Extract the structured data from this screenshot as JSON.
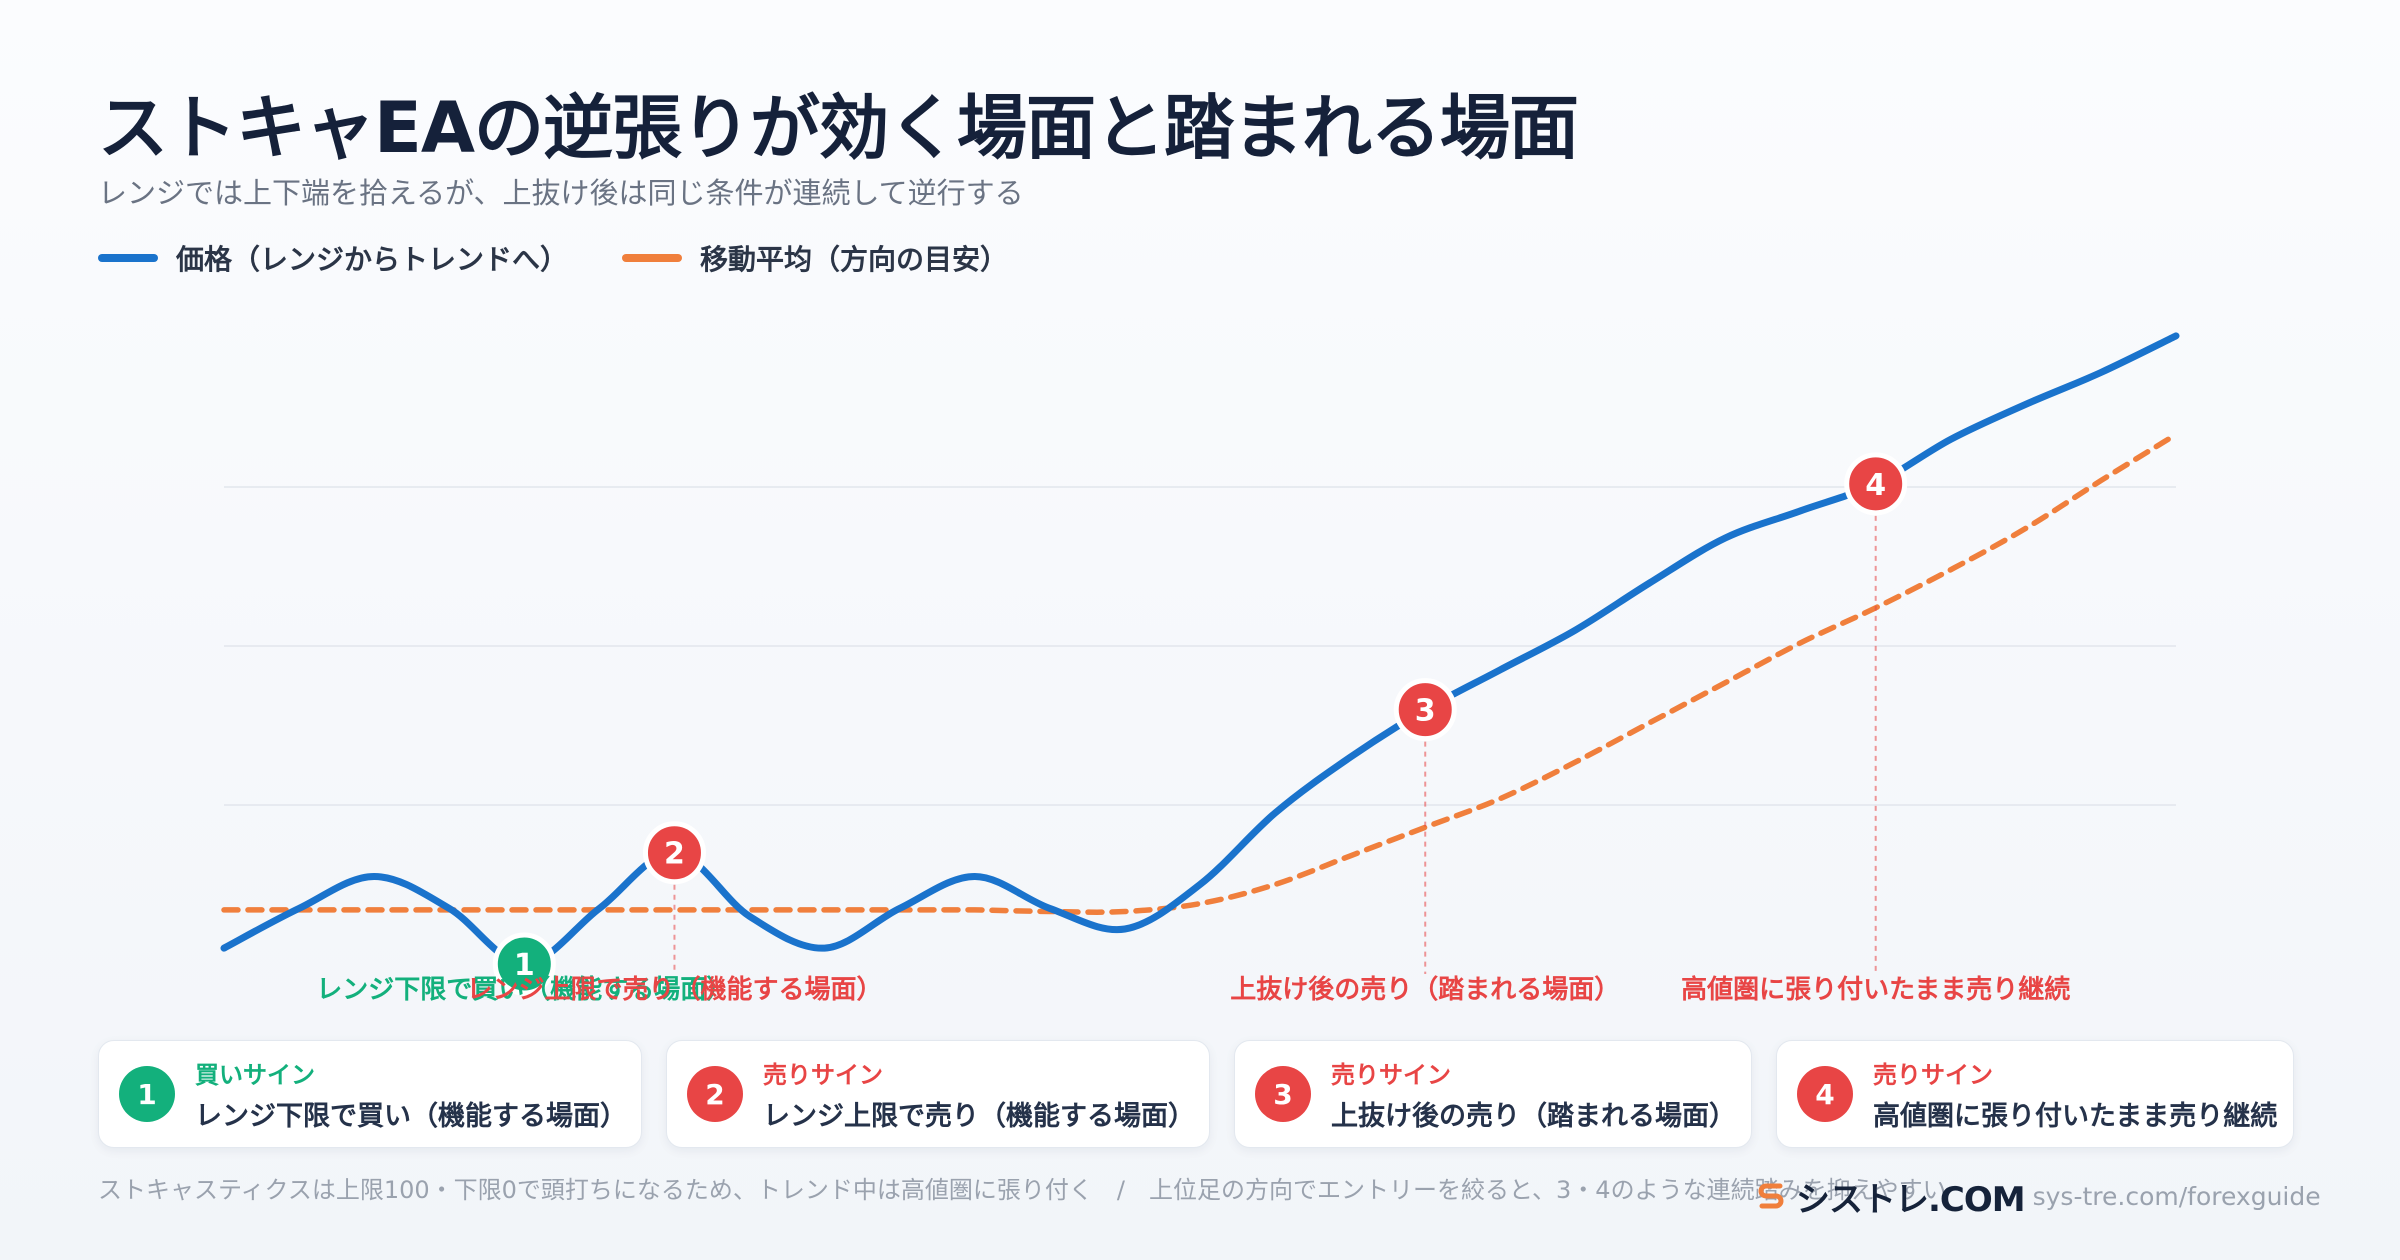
{
  "title": "ストキャEAの逆張りが効く場面と踏まれる場面",
  "subtitle": "レンジでは上下端を拾えるが、上抜け後は同じ条件が連続して逆行する",
  "colors": {
    "price": "#1a73cc",
    "ma": "#f07f3c",
    "buy": "#13b07c",
    "sell": "#e84545",
    "grid": "#e2e6ec"
  },
  "legend": {
    "price_label": "価格（レンジからトレンドへ）",
    "ma_label": "移動平均（方向の目安）"
  },
  "chart_data": {
    "type": "line",
    "x": [
      0,
      0.5,
      1,
      1.5,
      2,
      2.5,
      3,
      3.5,
      4,
      4.5,
      5,
      5.5,
      6,
      6.5,
      7,
      7.5,
      8,
      8.5,
      9,
      9.5,
      10,
      10.5,
      11,
      11.5,
      12,
      12.5,
      13
    ],
    "xlim": [
      0,
      13
    ],
    "ylim": [
      0,
      4
    ],
    "grid": true,
    "legend_position": "top-left",
    "series": [
      {
        "name": "価格（レンジからトレンドへ）",
        "style": "solid",
        "values": [
          0.1,
          0.35,
          0.55,
          0.35,
          0.0,
          0.35,
          0.7,
          0.3,
          0.1,
          0.35,
          0.55,
          0.35,
          0.22,
          0.5,
          0.95,
          1.3,
          1.6,
          1.85,
          2.1,
          2.4,
          2.68,
          2.85,
          3.02,
          3.3,
          3.52,
          3.72,
          3.95
        ]
      },
      {
        "name": "移動平均（方向の目安）",
        "style": "dashed",
        "values": [
          0.34,
          0.34,
          0.34,
          0.34,
          0.34,
          0.34,
          0.34,
          0.34,
          0.34,
          0.34,
          0.34,
          0.33,
          0.33,
          0.38,
          0.5,
          0.68,
          0.86,
          1.04,
          1.27,
          1.52,
          1.77,
          2.02,
          2.24,
          2.48,
          2.74,
          3.04,
          3.33
        ]
      }
    ],
    "signals": [
      {
        "number": "1",
        "x": 2.0,
        "y": 0.0,
        "kind": "buy",
        "annotation": "レンジ下限で買い（機能する場面）"
      },
      {
        "number": "2",
        "x": 3.0,
        "y": 0.7,
        "kind": "sell",
        "annotation": "レンジ上限で売り（機能する場面）"
      },
      {
        "number": "3",
        "x": 8.0,
        "y": 1.6,
        "kind": "sell",
        "annotation": "上抜け後の売り（踏まれる場面）"
      },
      {
        "number": "4",
        "x": 11.0,
        "y": 3.02,
        "kind": "sell",
        "annotation": "高値圏に張り付いたまま売り継続"
      }
    ]
  },
  "cards": [
    {
      "number": "1",
      "tag": "買いサイン",
      "desc": "レンジ下限で買い（機能する場面）",
      "kind": "buy"
    },
    {
      "number": "2",
      "tag": "売りサイン",
      "desc": "レンジ上限で売り（機能する場面）",
      "kind": "sell"
    },
    {
      "number": "3",
      "tag": "売りサイン",
      "desc": "上抜け後の売り（踏まれる場面）",
      "kind": "sell"
    },
    {
      "number": "4",
      "tag": "売りサイン",
      "desc": "高値圏に張り付いたまま売り継続",
      "kind": "sell"
    }
  ],
  "footnote": "ストキャスティクスは上限100・下限0で頭打ちになるため、トレンド中は高値圏に張り付く　/　上位足の方向でエントリーを絞ると、3・4のような連続踏みを抑えやすい",
  "brand": {
    "name": "シストレ.COM",
    "url": "sys-tre.com/forexguide"
  }
}
